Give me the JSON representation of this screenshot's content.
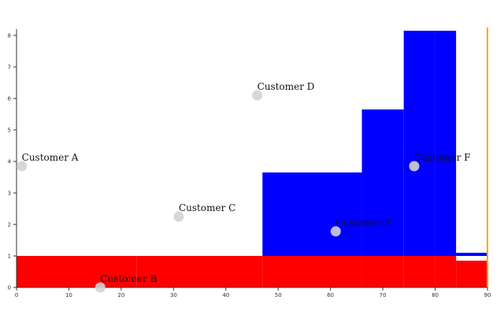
{
  "chart_data": {
    "type": "bar",
    "xlim": [
      0,
      90
    ],
    "ylim": [
      0,
      8.2
    ],
    "x_ticks": [
      0,
      10,
      20,
      30,
      40,
      50,
      60,
      70,
      80,
      90
    ],
    "y_ticks": [
      0,
      1,
      2,
      3,
      4,
      5,
      6,
      7,
      8
    ],
    "grid": false,
    "colors": {
      "red": "#ff0000",
      "blue": "#0000ff",
      "marker": "#ffa500",
      "point": "#d3d3d3"
    },
    "red_bars": [
      {
        "x0": 0,
        "x1": 23,
        "value": 1.0
      },
      {
        "x0": 23,
        "x1": 47,
        "value": 1.0
      },
      {
        "x0": 47,
        "x1": 66,
        "value": 1.0
      },
      {
        "x0": 66,
        "x1": 74,
        "value": 1.0
      },
      {
        "x0": 74,
        "x1": 80,
        "value": 1.0
      },
      {
        "x0": 80,
        "x1": 84,
        "value": 1.0
      },
      {
        "x0": 84,
        "x1": 90,
        "value": 0.85
      }
    ],
    "blue_bars": [
      {
        "x0": 47,
        "x1": 66,
        "value": 3.65
      },
      {
        "x0": 66,
        "x1": 74,
        "value": 5.65
      },
      {
        "x0": 74,
        "x1": 80,
        "value": 8.15
      },
      {
        "x0": 80,
        "x1": 84,
        "value": 8.15
      },
      {
        "x0": 84,
        "x1": 90,
        "value": 1.1
      }
    ],
    "marker_line_x": 90,
    "points": [
      {
        "label": "Customer A",
        "x": 1,
        "y": 3.85
      },
      {
        "label": "Customer B",
        "x": 16,
        "y": 0.0
      },
      {
        "label": "Customer C",
        "x": 31,
        "y": 2.25
      },
      {
        "label": "Customer D",
        "x": 46,
        "y": 6.1
      },
      {
        "label": "Customer E",
        "x": 61,
        "y": 1.78
      },
      {
        "label": "Customer F",
        "x": 76,
        "y": 3.85
      }
    ]
  }
}
